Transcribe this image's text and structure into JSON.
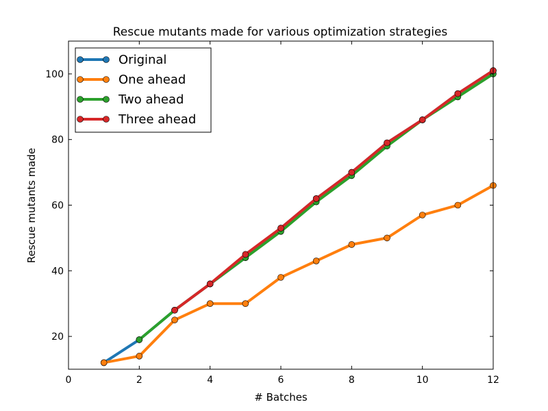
{
  "chart_data": {
    "type": "line",
    "title": "Rescue mutants made for various optimization strategies",
    "xlabel": "# Batches",
    "ylabel": "Rescue mutants made",
    "xlim": [
      0,
      12
    ],
    "ylim": [
      10,
      110
    ],
    "xticks": [
      0,
      2,
      4,
      6,
      8,
      10,
      12
    ],
    "yticks": [
      20,
      40,
      60,
      80,
      100
    ],
    "grid": false,
    "legend_position": "top-left",
    "series": [
      {
        "name": "Original",
        "color": "#1f77b4",
        "x": [
          1,
          2,
          3,
          4,
          5,
          6,
          7,
          8,
          9,
          10,
          11,
          12
        ],
        "y": [
          12,
          19,
          28,
          36,
          44,
          53,
          62,
          70,
          79,
          86,
          94,
          101
        ]
      },
      {
        "name": "One ahead",
        "color": "#ff7f0e",
        "x": [
          1,
          2,
          3,
          4,
          5,
          6,
          7,
          8,
          9,
          10,
          11,
          12
        ],
        "y": [
          12,
          14,
          25,
          30,
          30,
          38,
          43,
          48,
          50,
          57,
          60,
          66
        ]
      },
      {
        "name": "Two ahead",
        "color": "#2ca02c",
        "x": [
          2,
          3,
          4,
          5,
          6,
          7,
          8,
          9,
          10,
          11,
          12
        ],
        "y": [
          19,
          28,
          36,
          44,
          52,
          61,
          69,
          78,
          86,
          93,
          100
        ]
      },
      {
        "name": "Three ahead",
        "color": "#d62728",
        "x": [
          3,
          4,
          5,
          6,
          7,
          8,
          9,
          10,
          11,
          12
        ],
        "y": [
          28,
          36,
          45,
          53,
          62,
          70,
          79,
          86,
          94,
          101
        ]
      }
    ]
  }
}
